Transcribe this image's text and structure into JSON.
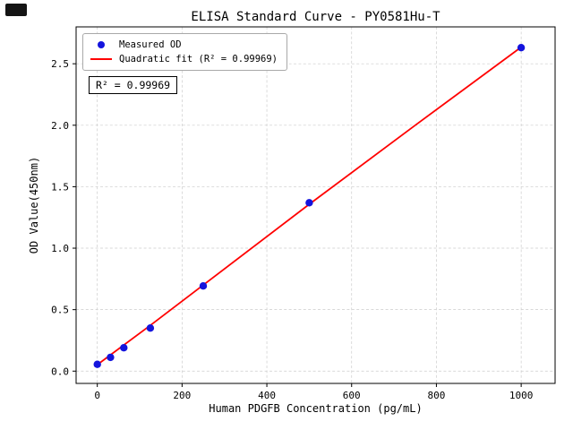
{
  "chart_data": {
    "type": "scatter",
    "title": "ELISA Standard Curve - PY0581Hu-T",
    "xlabel": "Human PDGFB Concentration (pg/mL)",
    "ylabel": "OD Value(450nm)",
    "annotation": "R² = 0.99969",
    "xlim": [
      -50,
      1080
    ],
    "ylim": [
      -0.1,
      2.8
    ],
    "xticks": [
      0,
      200,
      400,
      600,
      800,
      1000
    ],
    "yticks": [
      0,
      0.5,
      1,
      1.5,
      2,
      2.5
    ],
    "grid": true,
    "legend_position": "upper-left",
    "colors": {
      "grid": "#cccccc",
      "axis": "#000000"
    },
    "series": [
      {
        "name": "Measured OD",
        "type": "scatter",
        "color": "#1414dd",
        "x": [
          0,
          31.2,
          62.5,
          125,
          250,
          500,
          1000
        ],
        "y": [
          0.055,
          0.112,
          0.19,
          0.35,
          0.693,
          1.37,
          2.631
        ]
      },
      {
        "name": "Quadratic fit (R² = 0.99969)",
        "type": "line",
        "color": "#ff0000",
        "r_squared": 0.99969,
        "x": [
          0,
          125,
          250,
          500,
          750,
          1000
        ],
        "y": [
          0.052,
          0.372,
          0.7,
          1.357,
          2.0,
          2.635
        ]
      }
    ]
  }
}
